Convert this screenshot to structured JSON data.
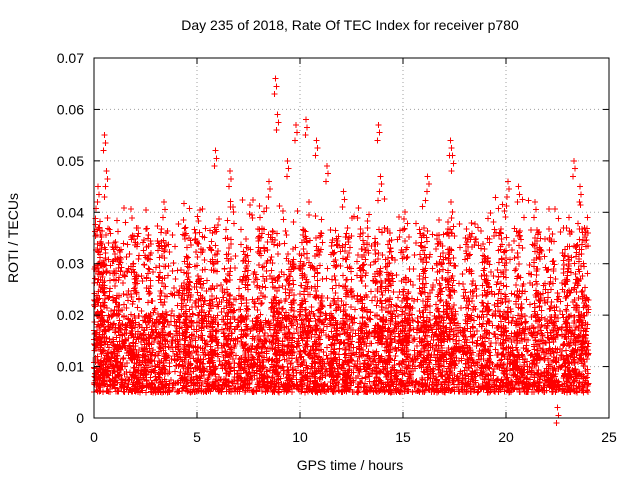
{
  "chart_data": {
    "type": "scatter",
    "title": "Day 235 of 2018, Rate Of TEC Index for receiver p780",
    "xlabel": "GPS time / hours",
    "ylabel": "ROTI / TECUs",
    "xlim": [
      0,
      25
    ],
    "ylim": [
      0,
      0.07
    ],
    "xticks": [
      0,
      5,
      10,
      15,
      20,
      25
    ],
    "yticks": [
      0,
      0.01,
      0.02,
      0.03,
      0.04,
      0.05,
      0.06,
      0.07
    ],
    "xtick_labels": [
      "0",
      "5",
      "10",
      "15",
      "20",
      "25"
    ],
    "ytick_labels": [
      "0",
      "0.01",
      "0.02",
      "0.03",
      "0.04",
      "0.05",
      "0.06",
      "0.07"
    ],
    "grid": true,
    "marker": "plus",
    "series": [
      {
        "name": "ROTI",
        "color": "#ff0000",
        "x_range": [
          0,
          24
        ],
        "typical_range": [
          0.005,
          0.02
        ],
        "notable_points": [
          {
            "x": 0.2,
            "y": 0.045
          },
          {
            "x": 0.5,
            "y": 0.055
          },
          {
            "x": 0.6,
            "y": 0.048
          },
          {
            "x": 3.4,
            "y": 0.042
          },
          {
            "x": 5.9,
            "y": 0.052
          },
          {
            "x": 6.6,
            "y": 0.048
          },
          {
            "x": 8.5,
            "y": 0.046
          },
          {
            "x": 8.8,
            "y": 0.066
          },
          {
            "x": 8.9,
            "y": 0.059
          },
          {
            "x": 9.4,
            "y": 0.05
          },
          {
            "x": 9.8,
            "y": 0.057
          },
          {
            "x": 10.3,
            "y": 0.058
          },
          {
            "x": 10.8,
            "y": 0.054
          },
          {
            "x": 11.3,
            "y": 0.049
          },
          {
            "x": 12.1,
            "y": 0.044
          },
          {
            "x": 13.8,
            "y": 0.057
          },
          {
            "x": 13.9,
            "y": 0.047
          },
          {
            "x": 16.2,
            "y": 0.047
          },
          {
            "x": 17.3,
            "y": 0.054
          },
          {
            "x": 17.4,
            "y": 0.051
          },
          {
            "x": 20.1,
            "y": 0.046
          },
          {
            "x": 20.6,
            "y": 0.045
          },
          {
            "x": 21.4,
            "y": 0.042
          },
          {
            "x": 23.3,
            "y": 0.05
          },
          {
            "x": 23.6,
            "y": 0.045
          },
          {
            "x": 22.5,
            "y": 0.002
          }
        ]
      }
    ]
  }
}
